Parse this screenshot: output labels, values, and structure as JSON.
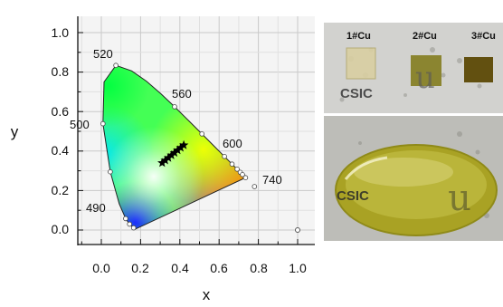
{
  "diagram": {
    "xlabel": "x",
    "ylabel": "y",
    "x_ticks": [
      "0.0",
      "0.2",
      "0.4",
      "0.6",
      "0.8",
      "1.0"
    ],
    "y_ticks": [
      "0.0",
      "0.2",
      "0.4",
      "0.6",
      "0.8",
      "1.0"
    ],
    "wavelength_labels": [
      "520",
      "560",
      "600",
      "740",
      "500",
      "490"
    ],
    "stars_count": 8
  },
  "photos": {
    "top": {
      "samples": [
        "1#Cu",
        "2#Cu",
        "3#Cu"
      ],
      "logo_text": "CSIC"
    },
    "bottom": {
      "logo_text": "CSIC"
    }
  }
}
